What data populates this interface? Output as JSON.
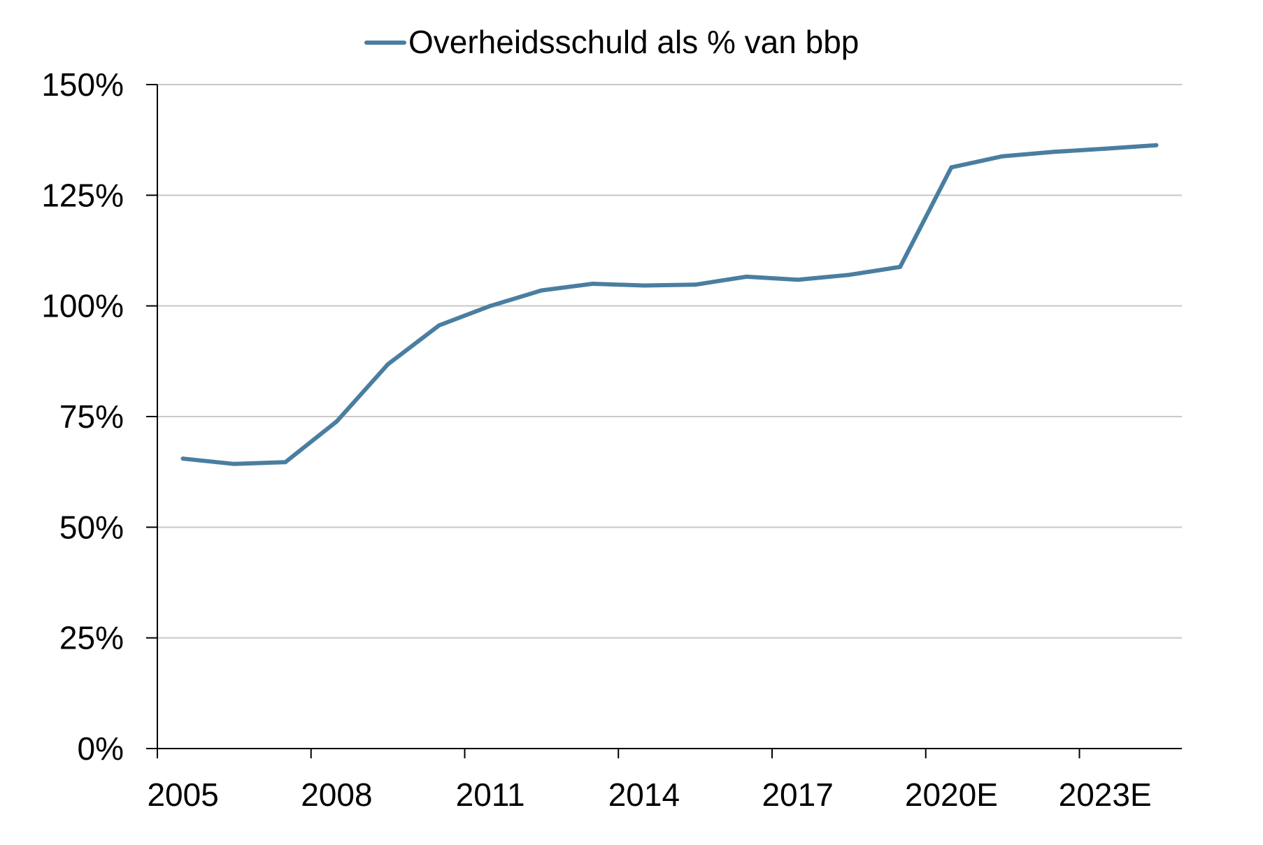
{
  "chart_data": {
    "type": "line",
    "title": "",
    "xlabel": "",
    "ylabel": "",
    "x": [
      "2005",
      "2006",
      "2007",
      "2008",
      "2009",
      "2010",
      "2011",
      "2012",
      "2013",
      "2014",
      "2015",
      "2016",
      "2017",
      "2018",
      "2019",
      "2020E",
      "2021E",
      "2022E",
      "2023E",
      "2024E"
    ],
    "x_tick_labels": [
      "2005",
      "2008",
      "2011",
      "2014",
      "2017",
      "2020E",
      "2023E"
    ],
    "y_tick_labels": [
      "0%",
      "25%",
      "50%",
      "75%",
      "100%",
      "125%",
      "150%"
    ],
    "y_ticks": [
      0,
      25,
      50,
      75,
      100,
      125,
      150
    ],
    "ylim": [
      0,
      150
    ],
    "grid": true,
    "legend_position": "top-center",
    "series": [
      {
        "name": "Overheidsschuld als % van bbp",
        "color": "#4a7ea0",
        "values": [
          65.5,
          64.3,
          64.7,
          73.9,
          86.8,
          95.6,
          100.0,
          103.5,
          105.0,
          104.6,
          104.8,
          106.6,
          105.9,
          107.0,
          108.8,
          131.3,
          133.8,
          134.8,
          135.5,
          136.3
        ]
      }
    ]
  }
}
